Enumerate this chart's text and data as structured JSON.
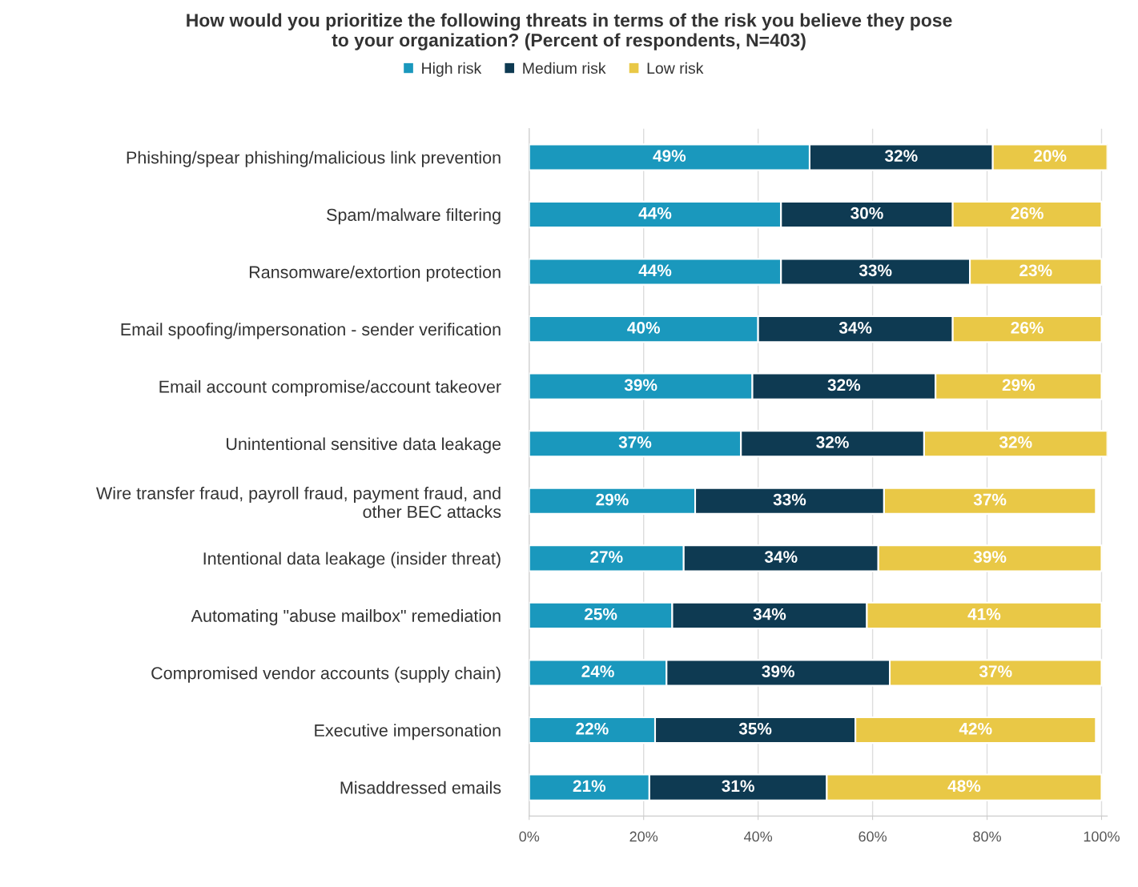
{
  "chart_data": {
    "type": "bar",
    "orientation": "horizontal",
    "stacked": true,
    "title": "How would you prioritize the following threats in terms of the risk you believe they pose\nto your organization? (Percent of respondents, N=403)",
    "categories": [
      "Phishing/spear phishing/malicious link prevention",
      "Spam/malware filtering",
      "Ransomware/extortion protection",
      "Email spoofing/impersonation - sender verification",
      "Email account compromise/account takeover",
      "Unintentional sensitive data leakage",
      "Wire transfer fraud, payroll fraud, payment fraud, and\nother BEC attacks",
      "Intentional data leakage (insider threat)",
      "Automating \"abuse mailbox\" remediation",
      "Compromised vendor accounts (supply chain)",
      "Executive impersonation",
      "Misaddressed emails"
    ],
    "series": [
      {
        "name": "High risk",
        "color": "#1a98bd",
        "values": [
          49,
          44,
          44,
          40,
          39,
          37,
          29,
          27,
          25,
          24,
          22,
          21
        ],
        "value_labels": [
          "49%",
          "44%",
          "44%",
          "40%",
          "39%",
          "37%",
          "29%",
          "27%",
          "25%",
          "24%",
          "22%",
          "21%"
        ]
      },
      {
        "name": "Medium risk",
        "color": "#0e3a52",
        "values": [
          32,
          30,
          33,
          34,
          32,
          32,
          33,
          34,
          34,
          39,
          35,
          31
        ],
        "value_labels": [
          "32%",
          "30%",
          "33%",
          "34%",
          "32%",
          "32%",
          "33%",
          "34%",
          "34%",
          "39%",
          "35%",
          "31%"
        ]
      },
      {
        "name": "Low risk",
        "color": "#e9c846",
        "values": [
          20,
          26,
          23,
          26,
          29,
          32,
          37,
          39,
          41,
          37,
          42,
          48
        ],
        "value_labels": [
          "20%",
          "26%",
          "23%",
          "26%",
          "29%",
          "32%",
          "37%",
          "39%",
          "41%",
          "37%",
          "42%",
          "48%"
        ]
      }
    ],
    "xlim": [
      0,
      101
    ],
    "xticks": [
      {
        "value": 0,
        "label": "0%"
      },
      {
        "value": 20,
        "label": "20%"
      },
      {
        "value": 40,
        "label": "40%"
      },
      {
        "value": 60,
        "label": "60%"
      },
      {
        "value": 80,
        "label": "80%"
      },
      {
        "value": 100,
        "label": "100%"
      }
    ],
    "grid": "x",
    "legend": "top"
  }
}
